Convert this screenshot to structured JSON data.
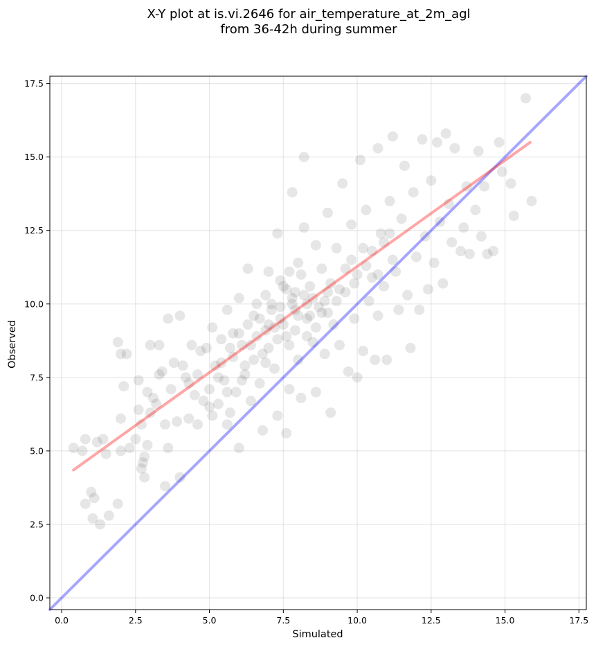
{
  "chart_data": {
    "type": "scatter",
    "title_line1": "X-Y plot at is.vi.2646 for air_temperature_at_2m_agl",
    "title_line2": "from 36-42h during summer",
    "xlabel": "Simulated",
    "ylabel": "Observed",
    "xlim": [
      -0.4,
      17.75
    ],
    "ylim": [
      -0.4,
      17.75
    ],
    "xticks": [
      0.0,
      2.5,
      5.0,
      7.5,
      10.0,
      12.5,
      15.0,
      17.5
    ],
    "yticks": [
      0.0,
      2.5,
      5.0,
      7.5,
      10.0,
      12.5,
      15.0,
      17.5
    ],
    "xtick_labels": [
      "0.0",
      "2.5",
      "5.0",
      "7.5",
      "10.0",
      "12.5",
      "15.0",
      "17.5"
    ],
    "ytick_labels": [
      "0.0",
      "2.5",
      "5.0",
      "7.5",
      "10.0",
      "12.5",
      "15.0",
      "17.5"
    ],
    "grid": true,
    "point_color": "#404040",
    "point_opacity": 0.13,
    "identity_line": {
      "from": [
        -0.4,
        -0.4
      ],
      "to": [
        17.75,
        17.75
      ],
      "color": "#0000ff",
      "opacity": 0.35
    },
    "fit_line": {
      "from": [
        0.4,
        4.35
      ],
      "to": [
        15.85,
        15.5
      ],
      "color": "#ff0000",
      "opacity": 0.35
    },
    "points": [
      [
        0.4,
        5.1
      ],
      [
        0.7,
        5.0
      ],
      [
        0.8,
        5.4
      ],
      [
        0.8,
        3.2
      ],
      [
        1.0,
        3.6
      ],
      [
        1.1,
        3.4
      ],
      [
        1.05,
        2.7
      ],
      [
        1.3,
        2.5
      ],
      [
        1.2,
        5.3
      ],
      [
        1.4,
        5.4
      ],
      [
        1.5,
        4.9
      ],
      [
        1.6,
        2.8
      ],
      [
        1.9,
        3.2
      ],
      [
        2.0,
        5.0
      ],
      [
        2.1,
        7.2
      ],
      [
        2.0,
        6.1
      ],
      [
        1.9,
        8.7
      ],
      [
        2.0,
        8.3
      ],
      [
        2.2,
        8.3
      ],
      [
        2.3,
        5.1
      ],
      [
        2.5,
        5.4
      ],
      [
        2.6,
        6.4
      ],
      [
        2.7,
        5.9
      ],
      [
        2.6,
        7.4
      ],
      [
        2.7,
        4.4
      ],
      [
        2.75,
        4.6
      ],
      [
        2.8,
        4.1
      ],
      [
        2.8,
        4.8
      ],
      [
        2.9,
        5.2
      ],
      [
        3.0,
        6.3
      ],
      [
        3.1,
        6.8
      ],
      [
        3.0,
        8.6
      ],
      [
        3.3,
        8.6
      ],
      [
        3.4,
        7.7
      ],
      [
        3.5,
        5.9
      ],
      [
        3.5,
        3.8
      ],
      [
        3.6,
        5.1
      ],
      [
        3.6,
        9.5
      ],
      [
        3.8,
        8.0
      ],
      [
        3.9,
        6.0
      ],
      [
        4.0,
        4.1
      ],
      [
        4.0,
        9.6
      ],
      [
        4.2,
        7.5
      ],
      [
        4.3,
        6.1
      ],
      [
        4.4,
        8.6
      ],
      [
        4.6,
        5.9
      ],
      [
        4.7,
        8.4
      ],
      [
        4.8,
        6.7
      ],
      [
        5.0,
        7.1
      ],
      [
        5.1,
        9.2
      ],
      [
        5.2,
        7.9
      ],
      [
        5.3,
        6.6
      ],
      [
        5.4,
        8.8
      ],
      [
        5.5,
        7.4
      ],
      [
        5.6,
        9.8
      ],
      [
        5.6,
        5.9
      ],
      [
        5.7,
        6.3
      ],
      [
        5.8,
        8.2
      ],
      [
        5.9,
        7.0
      ],
      [
        6.0,
        10.2
      ],
      [
        6.0,
        5.1
      ],
      [
        6.1,
        8.6
      ],
      [
        6.2,
        7.6
      ],
      [
        6.3,
        9.3
      ],
      [
        6.3,
        11.2
      ],
      [
        6.4,
        6.7
      ],
      [
        6.5,
        8.1
      ],
      [
        6.6,
        10.0
      ],
      [
        6.7,
        7.3
      ],
      [
        6.8,
        5.7
      ],
      [
        6.9,
        9.1
      ],
      [
        7.0,
        8.5
      ],
      [
        7.0,
        11.1
      ],
      [
        7.1,
        10.0
      ],
      [
        7.2,
        7.8
      ],
      [
        7.3,
        6.2
      ],
      [
        7.3,
        12.4
      ],
      [
        7.4,
        9.5
      ],
      [
        7.5,
        10.6
      ],
      [
        7.6,
        8.9
      ],
      [
        7.6,
        5.6
      ],
      [
        7.7,
        7.1
      ],
      [
        7.8,
        13.8
      ],
      [
        7.8,
        10.2
      ],
      [
        7.9,
        9.8
      ],
      [
        8.0,
        11.4
      ],
      [
        8.0,
        8.1
      ],
      [
        8.1,
        6.8
      ],
      [
        8.2,
        15.0
      ],
      [
        8.2,
        12.6
      ],
      [
        8.3,
        9.5
      ],
      [
        8.4,
        10.6
      ],
      [
        8.5,
        8.7
      ],
      [
        8.6,
        7.0
      ],
      [
        8.6,
        12.0
      ],
      [
        8.7,
        9.9
      ],
      [
        8.8,
        11.2
      ],
      [
        8.9,
        8.3
      ],
      [
        9.0,
        13.1
      ],
      [
        9.1,
        6.3
      ],
      [
        9.1,
        10.7
      ],
      [
        9.2,
        9.3
      ],
      [
        9.3,
        11.9
      ],
      [
        9.4,
        8.6
      ],
      [
        9.5,
        14.1
      ],
      [
        9.6,
        10.4
      ],
      [
        9.7,
        7.7
      ],
      [
        9.8,
        12.7
      ],
      [
        9.9,
        9.5
      ],
      [
        10.0,
        7.5
      ],
      [
        10.0,
        11.0
      ],
      [
        10.1,
        14.9
      ],
      [
        10.2,
        8.4
      ],
      [
        10.3,
        13.2
      ],
      [
        10.4,
        10.1
      ],
      [
        10.5,
        11.8
      ],
      [
        10.6,
        8.1
      ],
      [
        10.7,
        15.3
      ],
      [
        10.7,
        9.6
      ],
      [
        10.8,
        12.4
      ],
      [
        10.9,
        10.6
      ],
      [
        11.0,
        8.1
      ],
      [
        11.1,
        13.5
      ],
      [
        11.2,
        15.7
      ],
      [
        11.3,
        11.1
      ],
      [
        11.4,
        9.8
      ],
      [
        11.5,
        12.9
      ],
      [
        11.6,
        14.7
      ],
      [
        11.7,
        10.3
      ],
      [
        11.8,
        8.5
      ],
      [
        11.9,
        13.8
      ],
      [
        12.0,
        11.6
      ],
      [
        12.1,
        9.8
      ],
      [
        12.2,
        15.6
      ],
      [
        12.3,
        12.3
      ],
      [
        12.4,
        10.5
      ],
      [
        12.5,
        14.2
      ],
      [
        12.6,
        11.4
      ],
      [
        12.7,
        15.5
      ],
      [
        12.8,
        12.8
      ],
      [
        12.9,
        10.7
      ],
      [
        13.0,
        15.8
      ],
      [
        13.1,
        13.4
      ],
      [
        13.2,
        12.1
      ],
      [
        13.3,
        15.3
      ],
      [
        13.5,
        11.8
      ],
      [
        13.6,
        12.6
      ],
      [
        13.7,
        14.0
      ],
      [
        13.8,
        11.7
      ],
      [
        14.0,
        13.2
      ],
      [
        14.1,
        15.2
      ],
      [
        14.2,
        12.3
      ],
      [
        14.3,
        14.0
      ],
      [
        14.4,
        11.7
      ],
      [
        14.6,
        11.8
      ],
      [
        14.8,
        15.5
      ],
      [
        14.9,
        14.5
      ],
      [
        15.2,
        14.1
      ],
      [
        15.3,
        13.0
      ],
      [
        15.7,
        17.0
      ],
      [
        15.9,
        13.5
      ],
      [
        4.5,
        6.9
      ],
      [
        5.1,
        6.2
      ],
      [
        5.4,
        8.0
      ],
      [
        5.8,
        9.0
      ],
      [
        6.1,
        7.4
      ],
      [
        6.5,
        9.6
      ],
      [
        6.9,
        8.0
      ],
      [
        7.2,
        9.2
      ],
      [
        7.4,
        10.8
      ],
      [
        7.7,
        8.6
      ],
      [
        7.9,
        10.4
      ],
      [
        8.1,
        11.0
      ],
      [
        8.3,
        8.9
      ],
      [
        8.5,
        10.2
      ],
      [
        8.8,
        9.7
      ],
      [
        9.0,
        10.4
      ],
      [
        9.3,
        10.1
      ],
      [
        9.6,
        11.2
      ],
      [
        9.9,
        10.7
      ],
      [
        10.2,
        11.9
      ],
      [
        10.5,
        10.9
      ],
      [
        10.9,
        12.1
      ],
      [
        11.2,
        11.5
      ],
      [
        3.2,
        6.6
      ],
      [
        3.7,
        7.1
      ],
      [
        4.1,
        7.9
      ],
      [
        4.6,
        7.6
      ],
      [
        4.9,
        8.5
      ],
      [
        5.3,
        7.5
      ],
      [
        5.7,
        8.5
      ],
      [
        6.0,
        9.0
      ],
      [
        6.4,
        8.6
      ],
      [
        6.7,
        9.5
      ],
      [
        7.1,
        9.8
      ],
      [
        7.5,
        9.3
      ],
      [
        7.8,
        10.0
      ],
      [
        8.2,
        10.3
      ],
      [
        8.6,
        9.2
      ],
      [
        9.0,
        9.7
      ],
      [
        2.9,
        7.0
      ],
      [
        3.3,
        7.6
      ],
      [
        4.3,
        7.3
      ],
      [
        5.0,
        6.5
      ],
      [
        5.6,
        7.0
      ],
      [
        6.2,
        7.9
      ],
      [
        6.8,
        8.3
      ],
      [
        7.3,
        8.8
      ],
      [
        7.9,
        9.1
      ],
      [
        8.4,
        9.6
      ],
      [
        8.9,
        10.1
      ],
      [
        9.4,
        10.5
      ],
      [
        9.8,
        11.5
      ],
      [
        10.3,
        11.3
      ],
      [
        10.7,
        11.0
      ],
      [
        11.1,
        12.4
      ],
      [
        6.9,
        10.3
      ],
      [
        7.6,
        10.5
      ],
      [
        8.0,
        9.6
      ],
      [
        7.0,
        9.3
      ],
      [
        7.4,
        9.9
      ],
      [
        8.3,
        10.0
      ],
      [
        6.6,
        8.9
      ],
      [
        7.7,
        11.1
      ]
    ]
  }
}
